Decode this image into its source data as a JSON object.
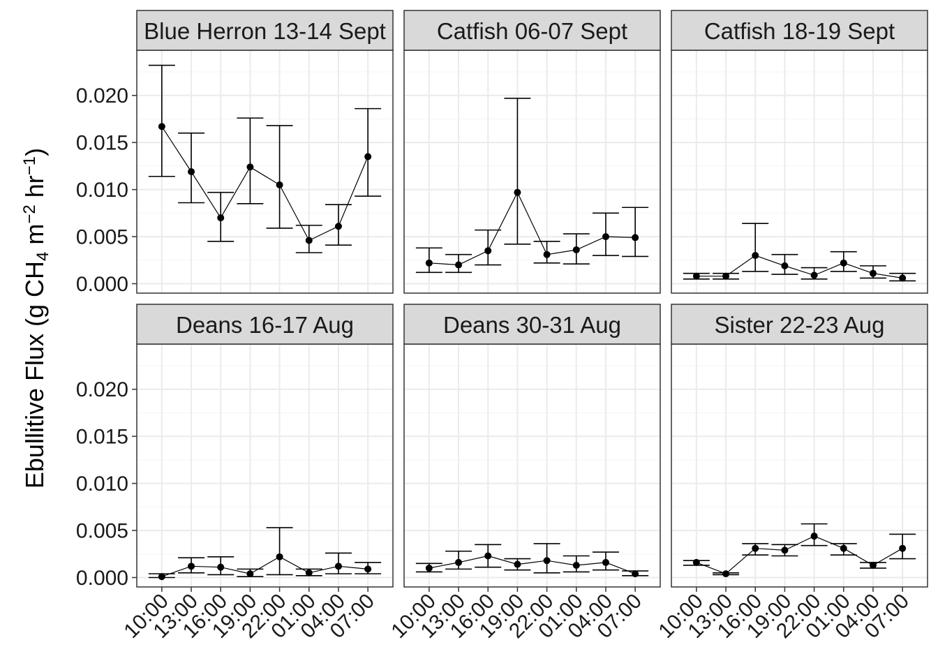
{
  "chart_data": {
    "type": "line",
    "title": "",
    "xlabel": "",
    "ylabel": {
      "prefix": "Ebullitive Flux (g CH",
      "sub4": "4",
      "mid1": " m",
      "sup1": "−2",
      "mid2": " hr",
      "sup2": "−1",
      "suffix": ")"
    },
    "ylim": [
      -0.001,
      0.0248
    ],
    "yticks": [
      0.0,
      0.005,
      0.01,
      0.015,
      0.02
    ],
    "ytick_labels": [
      "0.000",
      "0.005",
      "0.010",
      "0.015",
      "0.020"
    ],
    "categories": [
      "10:00",
      "13:00",
      "16:00",
      "19:00",
      "22:00",
      "01:00",
      "04:00",
      "07:00"
    ],
    "grid": true,
    "legend": "none",
    "colors": {
      "strip_fill": "#d9d9d9",
      "panel_border": "#333333",
      "grid_major": "#ebebeb",
      "grid_minor": "#f5f5f5",
      "line": "#000000"
    },
    "panels": [
      {
        "name": "Blue Herron 13-14 Sept",
        "values": [
          0.0167,
          0.0119,
          0.007,
          0.0124,
          0.0105,
          0.0046,
          0.0061,
          0.0135
        ],
        "lower": [
          0.0114,
          0.0086,
          0.0045,
          0.0085,
          0.0059,
          0.0033,
          0.0041,
          0.0093
        ],
        "upper": [
          0.0232,
          0.016,
          0.0097,
          0.0176,
          0.0168,
          0.0062,
          0.0084,
          0.0186
        ]
      },
      {
        "name": "Catfish 06-07 Sept",
        "values": [
          0.0022,
          0.002,
          0.0035,
          0.0097,
          0.0031,
          0.0036,
          0.005,
          0.0049
        ],
        "lower": [
          0.0012,
          0.0012,
          0.002,
          0.0042,
          0.0022,
          0.0021,
          0.003,
          0.0029
        ],
        "upper": [
          0.0038,
          0.0031,
          0.0057,
          0.0197,
          0.0045,
          0.0053,
          0.0075,
          0.0081
        ]
      },
      {
        "name": "Catfish 18-19 Sept",
        "values": [
          0.0008,
          0.0008,
          0.003,
          0.0019,
          0.0009,
          0.0022,
          0.0011,
          0.0006
        ],
        "lower": [
          0.0005,
          0.0005,
          0.0013,
          0.001,
          0.0005,
          0.0013,
          0.0006,
          0.0003
        ],
        "upper": [
          0.0011,
          0.0011,
          0.0064,
          0.0031,
          0.0017,
          0.0034,
          0.0019,
          0.0011
        ]
      },
      {
        "name": "Deans 16-17 Aug",
        "values": [
          0.0001,
          0.0012,
          0.0011,
          0.0004,
          0.0022,
          0.0005,
          0.0012,
          0.0009
        ],
        "lower": [
          0.0,
          0.0005,
          0.0003,
          0.0001,
          0.0003,
          0.0002,
          0.0004,
          0.0004
        ],
        "upper": [
          0.0004,
          0.0021,
          0.0022,
          0.0009,
          0.0053,
          0.0009,
          0.0026,
          0.0016
        ]
      },
      {
        "name": "Deans 30-31 Aug",
        "values": [
          0.001,
          0.0016,
          0.0023,
          0.0014,
          0.0018,
          0.0013,
          0.0016,
          0.0004
        ],
        "lower": [
          0.0006,
          0.0009,
          0.0011,
          0.0008,
          0.0005,
          0.0006,
          0.0008,
          0.0002
        ],
        "upper": [
          0.0015,
          0.0028,
          0.0035,
          0.002,
          0.0036,
          0.0023,
          0.0027,
          0.0007
        ]
      },
      {
        "name": "Sister 22-23 Aug",
        "values": [
          0.0016,
          0.0004,
          0.0031,
          0.0029,
          0.0044,
          0.0031,
          0.0013,
          0.0031
        ],
        "lower": [
          0.0013,
          0.0003,
          0.0024,
          0.0023,
          0.0034,
          0.0024,
          0.001,
          0.002
        ],
        "upper": [
          0.0018,
          0.0005,
          0.0036,
          0.0035,
          0.0057,
          0.0036,
          0.0016,
          0.0046
        ]
      }
    ]
  }
}
